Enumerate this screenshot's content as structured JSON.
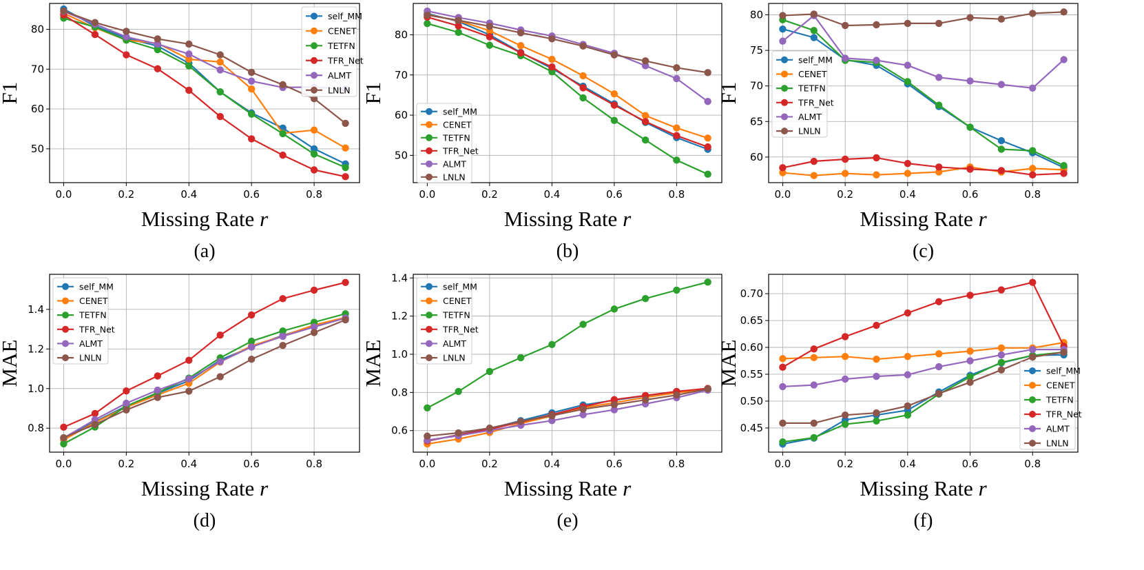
{
  "legend_labels": [
    "self_MM",
    "CENET",
    "TETFN",
    "TFR_Net",
    "ALMT",
    "LNLN"
  ],
  "colors": {
    "self_MM": "#1f77b4",
    "CENET": "#ff7f0e",
    "TETFN": "#2ca02c",
    "TFR_Net": "#d62728",
    "ALMT": "#9467bd",
    "LNLN": "#8c564b"
  },
  "chart_data": [
    {
      "type": "line",
      "panel_label": "(a)",
      "xlabel": "Missing Rate r",
      "ylabel": "F1",
      "x": [
        0.0,
        0.1,
        0.2,
        0.3,
        0.4,
        0.5,
        0.6,
        0.7,
        0.8,
        0.9
      ],
      "xlim": [
        -0.045,
        0.945
      ],
      "ylim": [
        41.5,
        86.5
      ],
      "xticks": [
        "0.0",
        "0.2",
        "0.4",
        "0.6",
        "0.8"
      ],
      "yticks": [
        50,
        60,
        70,
        80
      ],
      "grid": true,
      "legend_position": "upper right",
      "series": [
        {
          "name": "self_MM",
          "values": [
            85.1,
            80.8,
            77.8,
            75.8,
            71.5,
            64.3,
            59.0,
            55.2,
            50.0,
            46.2
          ]
        },
        {
          "name": "CENET",
          "values": [
            84.0,
            80.4,
            77.3,
            76.5,
            72.5,
            71.8,
            65.0,
            53.9,
            54.7,
            50.2
          ]
        },
        {
          "name": "TETFN",
          "values": [
            82.8,
            80.6,
            77.3,
            74.9,
            70.8,
            64.3,
            58.7,
            53.8,
            48.7,
            45.3
          ]
        },
        {
          "name": "TFR_Net",
          "values": [
            83.6,
            78.7,
            73.6,
            70.1,
            64.7,
            58.1,
            52.5,
            48.4,
            44.7,
            43.0
          ]
        },
        {
          "name": "ALMT",
          "values": [
            84.5,
            81.3,
            78.1,
            76.3,
            73.8,
            69.8,
            67.0,
            65.4,
            65.5,
            65.0
          ]
        },
        {
          "name": "LNLN",
          "values": [
            84.6,
            81.7,
            79.5,
            77.6,
            76.3,
            73.6,
            69.2,
            66.1,
            62.6,
            56.4
          ]
        }
      ]
    },
    {
      "type": "line",
      "panel_label": "(b)",
      "xlabel": "Missing Rate r",
      "ylabel": "F1",
      "x": [
        0.0,
        0.1,
        0.2,
        0.3,
        0.4,
        0.5,
        0.6,
        0.7,
        0.8,
        0.9
      ],
      "xlim": [
        -0.045,
        0.945
      ],
      "ylim": [
        43.2,
        87.8
      ],
      "xticks": [
        "0.0",
        "0.2",
        "0.4",
        "0.6",
        "0.8"
      ],
      "yticks": [
        50,
        60,
        70,
        80
      ],
      "grid": true,
      "legend_position": "lower left",
      "series": [
        {
          "name": "self_MM",
          "values": [
            85.3,
            83.3,
            80.0,
            75.6,
            71.6,
            67.2,
            62.8,
            58.2,
            54.4,
            51.5
          ]
        },
        {
          "name": "CENET",
          "values": [
            85.0,
            83.5,
            81.0,
            77.3,
            73.9,
            69.8,
            65.3,
            59.9,
            56.8,
            54.3
          ]
        },
        {
          "name": "TETFN",
          "values": [
            82.8,
            80.6,
            77.4,
            74.8,
            70.8,
            64.3,
            58.7,
            53.8,
            48.8,
            45.3
          ]
        },
        {
          "name": "TFR_Net",
          "values": [
            84.4,
            82.2,
            79.5,
            75.5,
            72.0,
            66.8,
            62.5,
            58.4,
            54.9,
            52.1
          ]
        },
        {
          "name": "ALMT",
          "values": [
            85.9,
            84.3,
            82.9,
            81.2,
            79.7,
            77.6,
            75.4,
            72.3,
            69.1,
            63.4
          ]
        },
        {
          "name": "LNLN",
          "values": [
            84.9,
            83.6,
            82.1,
            80.5,
            79.0,
            77.2,
            75.0,
            73.5,
            71.8,
            70.6
          ]
        }
      ]
    },
    {
      "type": "line",
      "panel_label": "(c)",
      "xlabel": "Missing Rate r",
      "ylabel": "F1",
      "x": [
        0.0,
        0.1,
        0.2,
        0.3,
        0.4,
        0.5,
        0.6,
        0.7,
        0.8,
        0.9
      ],
      "xlim": [
        -0.045,
        0.945
      ],
      "ylim": [
        56.4,
        81.6
      ],
      "xticks": [
        "0.0",
        "0.2",
        "0.4",
        "0.6",
        "0.8"
      ],
      "yticks": [
        60,
        65,
        70,
        75,
        80
      ],
      "grid": true,
      "legend_position": "center left",
      "series": [
        {
          "name": "self_MM",
          "values": [
            78.0,
            76.8,
            73.7,
            72.9,
            70.3,
            67.1,
            64.2,
            62.3,
            60.6,
            58.5
          ]
        },
        {
          "name": "CENET",
          "values": [
            57.8,
            57.4,
            57.7,
            57.5,
            57.7,
            57.9,
            58.6,
            57.9,
            58.4,
            58.2
          ]
        },
        {
          "name": "TETFN",
          "values": [
            79.3,
            77.8,
            73.6,
            73.3,
            70.6,
            67.3,
            64.2,
            61.1,
            60.9,
            58.8
          ]
        },
        {
          "name": "TFR_Net",
          "values": [
            58.5,
            59.4,
            59.7,
            59.9,
            59.1,
            58.6,
            58.3,
            58.1,
            57.5,
            57.7
          ]
        },
        {
          "name": "ALMT",
          "values": [
            76.3,
            79.9,
            73.9,
            73.6,
            72.9,
            71.2,
            70.7,
            70.2,
            69.7,
            73.7
          ]
        },
        {
          "name": "LNLN",
          "values": [
            79.9,
            80.1,
            78.5,
            78.6,
            78.8,
            78.8,
            79.6,
            79.4,
            80.2,
            80.4
          ]
        }
      ]
    },
    {
      "type": "line",
      "panel_label": "(d)",
      "xlabel": "Missing Rate r",
      "ylabel": "MAE",
      "x": [
        0.0,
        0.1,
        0.2,
        0.3,
        0.4,
        0.5,
        0.6,
        0.7,
        0.8,
        0.9
      ],
      "xlim": [
        -0.045,
        0.945
      ],
      "ylim": [
        0.679,
        1.577
      ],
      "xticks": [
        "0.0",
        "0.2",
        "0.4",
        "0.6",
        "0.8"
      ],
      "yticks": [
        "0.8",
        "1.0",
        "1.2",
        "1.4"
      ],
      "grid": true,
      "legend_position": "upper left",
      "series": [
        {
          "name": "self_MM",
          "values": [
            0.751,
            0.833,
            0.912,
            0.976,
            1.04,
            1.144,
            1.21,
            1.269,
            1.316,
            1.356
          ]
        },
        {
          "name": "CENET",
          "values": [
            0.741,
            0.829,
            0.906,
            0.968,
            1.027,
            1.134,
            1.216,
            1.265,
            1.321,
            1.359
          ]
        },
        {
          "name": "TETFN",
          "values": [
            0.721,
            0.806,
            0.911,
            0.979,
            1.053,
            1.155,
            1.239,
            1.291,
            1.335,
            1.378
          ]
        },
        {
          "name": "TFR_Net",
          "values": [
            0.805,
            0.874,
            0.988,
            1.064,
            1.143,
            1.27,
            1.372,
            1.454,
            1.497,
            1.536
          ]
        },
        {
          "name": "ALMT",
          "values": [
            0.751,
            0.843,
            0.926,
            0.992,
            1.049,
            1.136,
            1.21,
            1.264,
            1.311,
            1.356
          ]
        },
        {
          "name": "LNLN",
          "values": [
            0.752,
            0.819,
            0.892,
            0.955,
            0.987,
            1.06,
            1.148,
            1.218,
            1.283,
            1.347
          ]
        }
      ]
    },
    {
      "type": "line",
      "panel_label": "(e)",
      "xlabel": "Missing Rate r",
      "ylabel": "MAE",
      "x": [
        0.0,
        0.1,
        0.2,
        0.3,
        0.4,
        0.5,
        0.6,
        0.7,
        0.8,
        0.9
      ],
      "xlim": [
        -0.045,
        0.945
      ],
      "ylim": [
        0.487,
        1.419
      ],
      "xticks": [
        "0.0",
        "0.2",
        "0.4",
        "0.6",
        "0.8"
      ],
      "yticks": [
        "0.6",
        "0.8",
        "1.0",
        "1.2",
        "1.4"
      ],
      "grid": true,
      "legend_position": "upper left",
      "series": [
        {
          "name": "self_MM",
          "values": [
            0.545,
            0.578,
            0.61,
            0.652,
            0.693,
            0.734,
            0.759,
            0.783,
            0.804,
            0.818
          ]
        },
        {
          "name": "CENET",
          "values": [
            0.53,
            0.556,
            0.59,
            0.637,
            0.677,
            0.72,
            0.746,
            0.774,
            0.798,
            0.818
          ]
        },
        {
          "name": "TETFN",
          "values": [
            0.719,
            0.805,
            0.91,
            0.982,
            1.051,
            1.157,
            1.237,
            1.292,
            1.336,
            1.378
          ]
        },
        {
          "name": "TFR_Net",
          "values": [
            0.546,
            0.577,
            0.607,
            0.645,
            0.683,
            0.725,
            0.762,
            0.784,
            0.805,
            0.821
          ]
        },
        {
          "name": "ALMT",
          "values": [
            0.55,
            0.573,
            0.601,
            0.628,
            0.652,
            0.683,
            0.709,
            0.74,
            0.772,
            0.812
          ]
        },
        {
          "name": "LNLN",
          "values": [
            0.571,
            0.588,
            0.613,
            0.648,
            0.678,
            0.712,
            0.736,
            0.761,
            0.786,
            0.818
          ]
        }
      ]
    },
    {
      "type": "line",
      "panel_label": "(f)",
      "xlabel": "Missing Rate r",
      "ylabel": "MAE",
      "x": [
        0.0,
        0.1,
        0.2,
        0.3,
        0.4,
        0.5,
        0.6,
        0.7,
        0.8,
        0.9
      ],
      "xlim": [
        -0.045,
        0.945
      ],
      "ylim": [
        0.405,
        0.736
      ],
      "xticks": [
        "0.0",
        "0.2",
        "0.4",
        "0.6",
        "0.8"
      ],
      "yticks": [
        "0.45",
        "0.50",
        "0.55",
        "0.60",
        "0.65",
        "0.70"
      ],
      "grid": true,
      "legend_position": "lower right",
      "series": [
        {
          "name": "self_MM",
          "values": [
            0.42,
            0.431,
            0.465,
            0.474,
            0.483,
            0.517,
            0.548,
            0.571,
            0.585,
            0.586
          ]
        },
        {
          "name": "CENET",
          "values": [
            0.579,
            0.581,
            0.583,
            0.578,
            0.583,
            0.588,
            0.593,
            0.599,
            0.599,
            0.609
          ]
        },
        {
          "name": "TETFN",
          "values": [
            0.424,
            0.432,
            0.457,
            0.463,
            0.474,
            0.513,
            0.545,
            0.572,
            0.585,
            0.591
          ]
        },
        {
          "name": "TFR_Net",
          "values": [
            0.563,
            0.597,
            0.62,
            0.641,
            0.664,
            0.685,
            0.697,
            0.707,
            0.721,
            0.602
          ]
        },
        {
          "name": "ALMT",
          "values": [
            0.527,
            0.53,
            0.541,
            0.546,
            0.549,
            0.564,
            0.575,
            0.586,
            0.596,
            0.596
          ]
        },
        {
          "name": "LNLN",
          "values": [
            0.459,
            0.459,
            0.474,
            0.478,
            0.491,
            0.514,
            0.535,
            0.558,
            0.582,
            0.591
          ]
        }
      ]
    }
  ]
}
